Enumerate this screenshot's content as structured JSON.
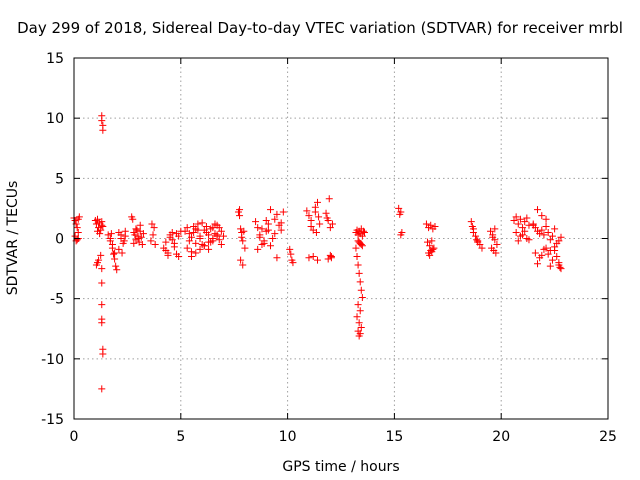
{
  "chart_data": {
    "type": "scatter",
    "title": "Day 299 of 2018, Sidereal Day-to-day VTEC variation (SDTVAR) for receiver mrbl",
    "xlabel": "GPS time / hours",
    "ylabel": "SDTVAR / TECUs",
    "xlim": [
      0,
      25
    ],
    "ylim": [
      -15,
      15
    ],
    "xticks": [
      0,
      5,
      10,
      15,
      20,
      25
    ],
    "yticks": [
      -15,
      -10,
      -5,
      0,
      5,
      10,
      15
    ],
    "grid": true,
    "marker": "+",
    "color": "#ff0000",
    "series": [
      {
        "name": "SDTVAR",
        "x": [
          0.0,
          0.05,
          0.1,
          0.15,
          0.2,
          0.25,
          0.05,
          0.15,
          0.2,
          0.1,
          0.2,
          1.0,
          1.05,
          1.1,
          1.15,
          1.2,
          1.25,
          1.3,
          1.35,
          1.1,
          1.2,
          1.3,
          1.05,
          1.15,
          1.25,
          1.1,
          1.3,
          1.3,
          1.3,
          1.35,
          1.35,
          1.3,
          1.3,
          1.3,
          1.3,
          1.35,
          1.35,
          1.3,
          1.6,
          1.7,
          1.75,
          1.8,
          1.85,
          1.9,
          1.95,
          2.0,
          1.7,
          1.8,
          1.9,
          2.1,
          2.2,
          2.3,
          2.4,
          2.1,
          2.25,
          2.4,
          2.2,
          2.35,
          2.7,
          2.75,
          2.8,
          2.85,
          2.9,
          2.95,
          3.0,
          3.05,
          3.1,
          3.15,
          3.2,
          3.25,
          2.8,
          2.9,
          3.0,
          3.1,
          3.6,
          3.7,
          3.8,
          3.65,
          3.75,
          4.2,
          4.3,
          4.4,
          4.5,
          4.6,
          4.7,
          4.8,
          4.9,
          5.0,
          4.3,
          4.5,
          4.7,
          4.9,
          4.4,
          4.6,
          4.8,
          5.2,
          5.3,
          5.4,
          5.5,
          5.6,
          5.7,
          5.8,
          5.9,
          6.0,
          6.1,
          6.2,
          6.3,
          6.4,
          6.5,
          6.6,
          6.7,
          6.8,
          6.9,
          7.0,
          5.3,
          5.5,
          5.7,
          5.9,
          6.1,
          6.3,
          6.5,
          6.7,
          6.9,
          5.4,
          5.6,
          5.8,
          6.0,
          6.2,
          6.4,
          6.6,
          6.8,
          5.5,
          5.7,
          5.9,
          6.1,
          6.3,
          6.5,
          6.7,
          7.7,
          7.75,
          7.8,
          7.85,
          7.9,
          7.95,
          8.0,
          7.8,
          7.9,
          7.75,
          7.85,
          8.5,
          8.6,
          8.7,
          8.8,
          8.9,
          9.0,
          9.1,
          9.2,
          9.3,
          9.4,
          8.6,
          8.8,
          9.0,
          9.2,
          8.7,
          8.9,
          9.1,
          9.4,
          9.5,
          9.6,
          9.7,
          9.8,
          9.5,
          9.7,
          10.1,
          10.2,
          10.15,
          10.25,
          10.9,
          11.0,
          11.1,
          11.2,
          11.3,
          11.4,
          11.5,
          11.0,
          11.2,
          11.4,
          11.1,
          11.3,
          11.35,
          11.45,
          11.8,
          11.9,
          12.0,
          12.1,
          11.85,
          11.95,
          12.05,
          11.9,
          12.0,
          12.05,
          13.2,
          13.25,
          13.3,
          13.35,
          13.4,
          13.45,
          13.5,
          13.55,
          13.6,
          13.3,
          13.4,
          13.5,
          13.35,
          13.45,
          13.2,
          13.25,
          13.3,
          13.35,
          13.4,
          13.45,
          13.5,
          13.3,
          13.4,
          13.25,
          13.35,
          13.45,
          13.3,
          13.4,
          13.35,
          15.2,
          15.3,
          15.25,
          15.35,
          15.3,
          16.5,
          16.6,
          16.7,
          16.8,
          16.9,
          16.55,
          16.65,
          16.75,
          16.85,
          16.6,
          16.7,
          16.8,
          16.65,
          16.75,
          18.6,
          18.7,
          18.8,
          18.9,
          19.0,
          19.1,
          18.7,
          18.9,
          18.65,
          18.85,
          19.5,
          19.6,
          19.7,
          19.8,
          19.55,
          19.65,
          19.75,
          19.6,
          19.7,
          20.6,
          20.7,
          20.8,
          20.9,
          21.0,
          21.1,
          21.2,
          21.3,
          20.7,
          20.9,
          21.1,
          21.3,
          20.8,
          21.0,
          21.2,
          21.5,
          21.6,
          21.7,
          21.8,
          21.9,
          22.0,
          22.1,
          22.2,
          22.3,
          22.4,
          22.5,
          22.6,
          22.7,
          22.8,
          21.6,
          21.8,
          22.0,
          22.2,
          22.4,
          22.6,
          21.7,
          21.9,
          22.1,
          22.3,
          22.5,
          22.7,
          21.5,
          21.7,
          21.9,
          22.1,
          22.3,
          22.5,
          22.7,
          22.75,
          22.8
        ],
        "y": [
          1.7,
          1.5,
          1.2,
          0.9,
          1.6,
          1.8,
          0.2,
          -0.1,
          0.5,
          -0.2,
          0.0,
          1.5,
          1.2,
          1.6,
          0.9,
          1.3,
          0.7,
          1.4,
          1.0,
          0.6,
          0.4,
          1.1,
          -2.2,
          -1.8,
          -1.4,
          -2.0,
          -2.5,
          10.2,
          9.8,
          9.4,
          9.0,
          -3.7,
          -5.5,
          -6.7,
          -7.0,
          -9.2,
          -9.6,
          -12.5,
          0.3,
          -0.2,
          0.4,
          -0.8,
          -1.3,
          -1.7,
          -2.3,
          -2.6,
          0.0,
          -0.5,
          -1.2,
          0.5,
          0.0,
          -0.4,
          0.6,
          -0.9,
          -1.2,
          0.2,
          0.3,
          -0.2,
          1.8,
          1.6,
          0.5,
          0.3,
          -0.1,
          0.7,
          0.2,
          -0.3,
          0.6,
          0.1,
          -0.5,
          0.4,
          -0.4,
          0.8,
          0.0,
          1.1,
          -0.2,
          0.3,
          -0.5,
          1.2,
          0.9,
          -0.8,
          -1.0,
          -1.2,
          0.3,
          0.5,
          -0.4,
          -1.3,
          -1.5,
          0.6,
          -0.3,
          0.1,
          -0.7,
          0.2,
          -1.4,
          -0.1,
          0.4,
          0.6,
          0.9,
          -0.2,
          0.1,
          0.5,
          0.8,
          1.2,
          0.2,
          -0.5,
          0.7,
          1.0,
          0.3,
          -0.3,
          0.9,
          0.4,
          1.1,
          -0.1,
          0.6,
          0.2,
          -0.8,
          -1.1,
          -0.4,
          0.0,
          -0.6,
          -0.9,
          -0.2,
          0.3,
          -0.5,
          0.4,
          1.0,
          0.7,
          1.3,
          0.5,
          0.8,
          1.2,
          0.9,
          -1.5,
          -1.2,
          -0.9,
          -0.6,
          -0.3,
          0.0,
          0.2,
          2.2,
          2.4,
          0.8,
          0.5,
          -0.2,
          0.6,
          -0.8,
          -1.8,
          -2.2,
          1.9,
          0.1,
          1.4,
          0.9,
          0.3,
          -0.5,
          -0.2,
          0.6,
          1.2,
          -0.6,
          0.0,
          0.4,
          -0.9,
          0.8,
          1.5,
          2.4,
          0.1,
          -0.4,
          0.7,
          1.6,
          2.0,
          1.1,
          0.7,
          2.2,
          -1.6,
          1.3,
          -0.9,
          -1.8,
          -1.3,
          -2.0,
          2.3,
          1.9,
          1.5,
          0.7,
          2.6,
          3.0,
          1.2,
          -1.6,
          -1.5,
          -1.8,
          1.0,
          2.2,
          0.5,
          1.8,
          2.1,
          1.5,
          0.9,
          1.2,
          1.7,
          3.3,
          -1.6,
          -1.7,
          -1.4,
          -1.5,
          0.5,
          0.7,
          0.3,
          0.6,
          0.4,
          0.8,
          0.2,
          0.6,
          0.5,
          -0.2,
          -0.4,
          -0.6,
          -0.3,
          -0.5,
          -0.8,
          -1.5,
          -2.2,
          -2.9,
          -3.6,
          -4.3,
          -4.9,
          -5.5,
          -6.0,
          -6.5,
          -7.0,
          -7.4,
          -7.7,
          -7.9,
          -8.1,
          2.5,
          2.2,
          2.0,
          0.5,
          0.3,
          1.2,
          0.9,
          1.1,
          0.8,
          1.0,
          -0.3,
          -0.6,
          -0.2,
          -0.8,
          -1.2,
          -1.0,
          -0.9,
          -1.4,
          -1.1,
          1.4,
          0.8,
          0.2,
          -0.2,
          -0.5,
          -0.8,
          0.5,
          -0.3,
          1.0,
          -0.1,
          0.6,
          0.3,
          -0.1,
          -0.5,
          -0.8,
          -1.0,
          -1.2,
          0.1,
          0.8,
          1.5,
          1.8,
          1.2,
          1.6,
          0.9,
          1.4,
          1.7,
          1.1,
          0.5,
          0.2,
          0.6,
          -0.1,
          -0.2,
          0.3,
          0.0,
          1.2,
          0.9,
          0.6,
          0.4,
          0.7,
          0.3,
          1.0,
          0.5,
          -0.1,
          0.2,
          0.8,
          -0.4,
          -0.2,
          0.1,
          -1.2,
          -1.6,
          -0.9,
          -1.3,
          -1.8,
          -1.5,
          2.4,
          1.9,
          1.6,
          -1.0,
          -0.7,
          -2.0,
          1.1,
          -2.1,
          -1.4,
          -0.8,
          -2.3,
          -1.0,
          -2.2,
          -2.4,
          -2.5
        ]
      }
    ]
  }
}
